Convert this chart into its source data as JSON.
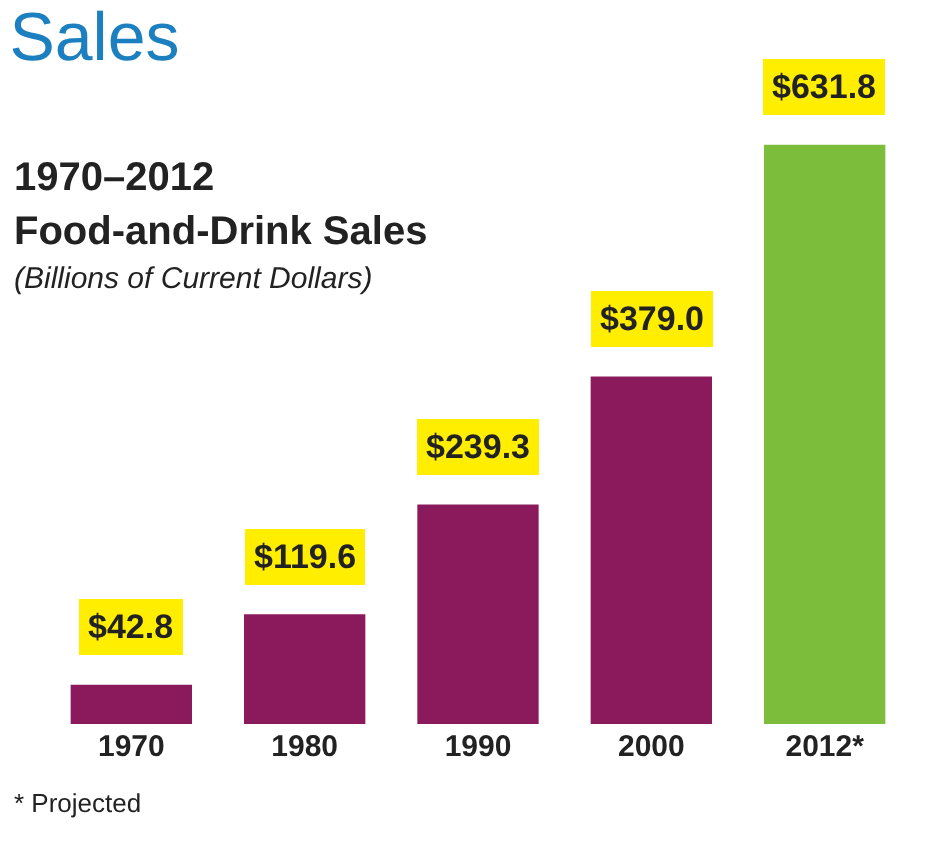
{
  "chart_data": {
    "type": "bar",
    "title": "Sales",
    "subtitle": "1970–2012\nFood-and-Drink Sales",
    "ylabel": "(Billions of Current Dollars)",
    "categories": [
      "1970",
      "1980",
      "1990",
      "2000",
      "2012*"
    ],
    "values": [
      42.8,
      119.6,
      239.3,
      379.0,
      631.8
    ],
    "colors": [
      "#8a1a5c",
      "#8a1a5c",
      "#8a1a5c",
      "#8a1a5c",
      "#7cbd3c"
    ],
    "value_labels": [
      "$42.8",
      "$119.6",
      "$239.3",
      "$379.0",
      "$631.8"
    ],
    "annotations": [
      "* Projected"
    ],
    "legend": false
  }
}
